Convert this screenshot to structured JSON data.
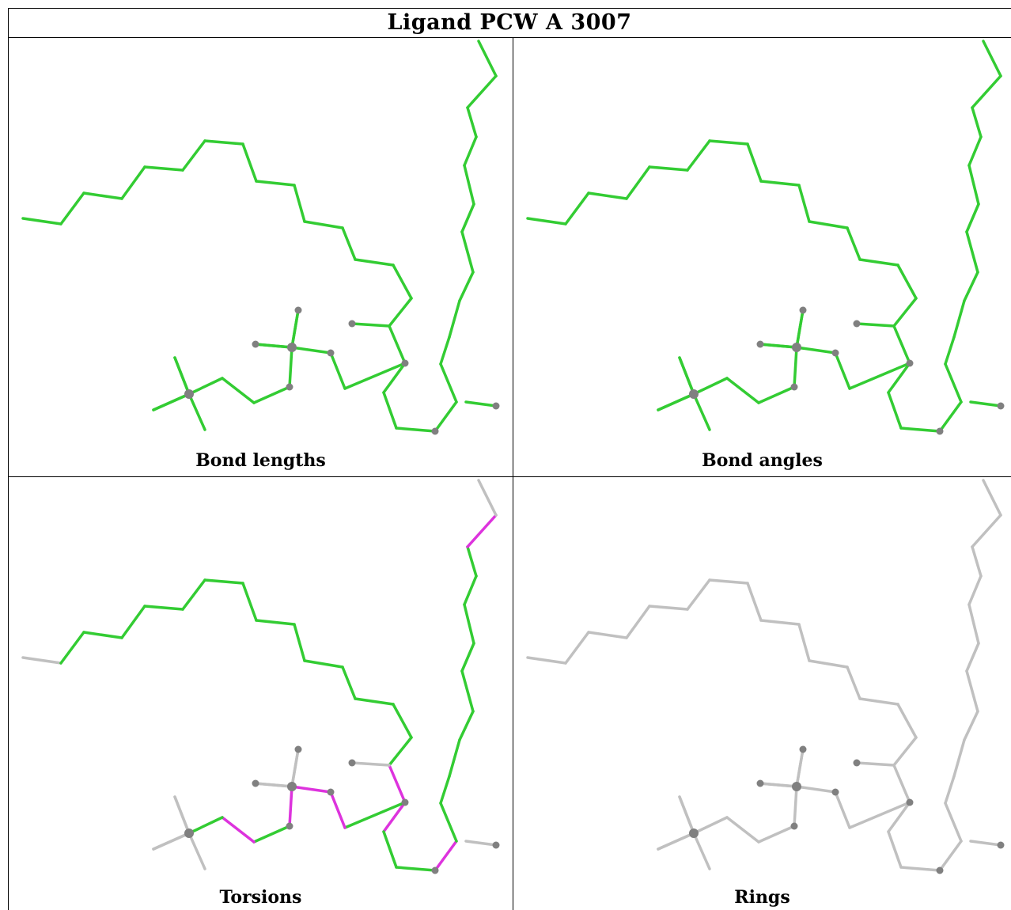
{
  "title": "Ligand PCW A 3007",
  "panels": [
    {
      "id": "bond-lengths",
      "caption": "Bond lengths",
      "scheme": "lengths"
    },
    {
      "id": "bond-angles",
      "caption": "Bond angles",
      "scheme": "angles"
    },
    {
      "id": "torsions",
      "caption": "Torsions",
      "scheme": "torsions"
    },
    {
      "id": "rings",
      "caption": "Rings",
      "scheme": "rings"
    }
  ],
  "colors": {
    "ok_bond": "#33cc33",
    "outlier_bond": "#dd33dd",
    "neutral_bond": "#c0c0c0",
    "atom": "#808080",
    "border": "#000000"
  }
}
